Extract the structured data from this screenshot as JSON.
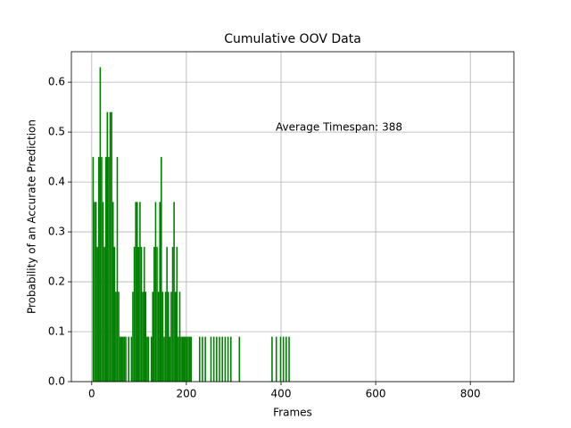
{
  "chart_data": {
    "type": "bar",
    "title": "Cumulative OOV Data",
    "xlabel": "Frames",
    "ylabel": "Probability of an Accurate Prediction",
    "annotation": "Average Timespan: 388",
    "color": "#008000",
    "grid": true,
    "xlim": [
      -43,
      892
    ],
    "ylim": [
      0,
      0.661
    ],
    "xticks": [
      0,
      200,
      400,
      600,
      800
    ],
    "yticks": [
      {
        "value": 0,
        "label": "0.0"
      },
      0.1,
      0.2,
      0.3,
      0.4,
      0.5,
      0.6
    ],
    "x": [
      3,
      6,
      9,
      12,
      15,
      18,
      21,
      24,
      27,
      30,
      33,
      36,
      39,
      42,
      45,
      48,
      51,
      54,
      57,
      60,
      63,
      66,
      69,
      72,
      78,
      84,
      87,
      90,
      93,
      96,
      99,
      102,
      105,
      108,
      111,
      114,
      117,
      120,
      126,
      129,
      132,
      135,
      138,
      141,
      144,
      147,
      150,
      153,
      156,
      159,
      162,
      165,
      168,
      171,
      174,
      177,
      180,
      183,
      186,
      189,
      192,
      195,
      198,
      201,
      204,
      207,
      210,
      228,
      234,
      240,
      252,
      258,
      264,
      270,
      276,
      282,
      288,
      294,
      312,
      381,
      390,
      399,
      405,
      411,
      417
    ],
    "values": [
      0.45,
      0.36,
      0.36,
      0.27,
      0.45,
      0.63,
      0.45,
      0.36,
      0.27,
      0.45,
      0.54,
      0.45,
      0.54,
      0.54,
      0.36,
      0.27,
      0.18,
      0.45,
      0.18,
      0.09,
      0.09,
      0.09,
      0.09,
      0.09,
      0.09,
      0.09,
      0.18,
      0.27,
      0.36,
      0.36,
      0.27,
      0.36,
      0.27,
      0.18,
      0.27,
      0.18,
      0.09,
      0.09,
      0.09,
      0.18,
      0.27,
      0.36,
      0.27,
      0.18,
      0.36,
      0.45,
      0.18,
      0.09,
      0.18,
      0.27,
      0.18,
      0.09,
      0.18,
      0.27,
      0.36,
      0.18,
      0.27,
      0.09,
      0.18,
      0.09,
      0.09,
      0.09,
      0.09,
      0.09,
      0.09,
      0.09,
      0.09,
      0.09,
      0.09,
      0.09,
      0.09,
      0.09,
      0.09,
      0.09,
      0.09,
      0.09,
      0.09,
      0.09,
      0.09,
      0.09,
      0.09,
      0.09,
      0.09,
      0.09,
      0.09
    ]
  }
}
